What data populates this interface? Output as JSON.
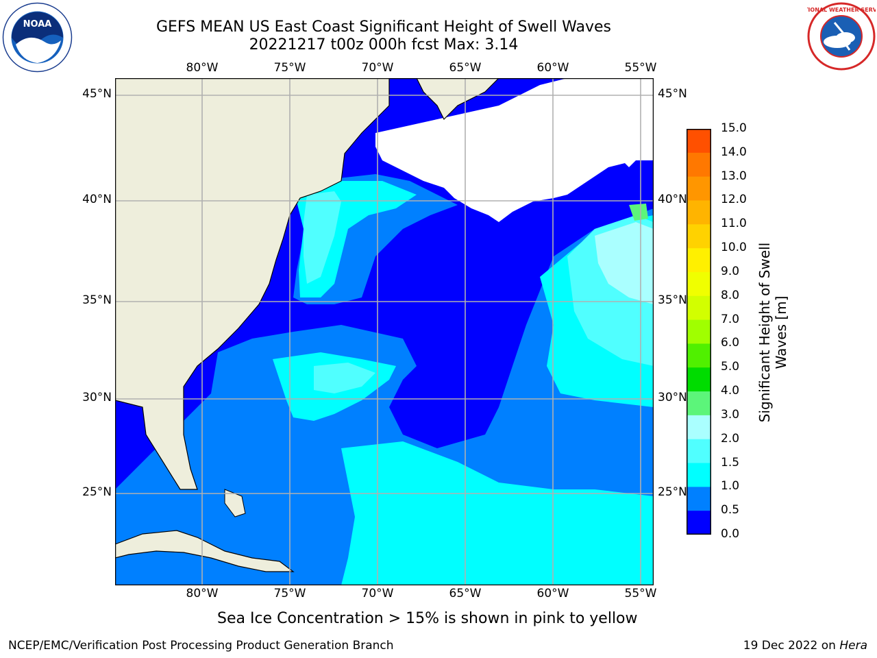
{
  "title": {
    "line1": "GEFS MEAN US East Coast Significant Height of Swell Waves",
    "line2": "20221217 t00z 000h fcst   Max: 3.14"
  },
  "logos": {
    "left": "noaa-logo",
    "right": "nws-logo",
    "left_text": "NOAA",
    "right_text": "NATIONAL WEATHER SERVICE"
  },
  "map": {
    "lon_labels": [
      "80°W",
      "75°W",
      "70°W",
      "65°W",
      "60°W",
      "55°W"
    ],
    "lat_labels": [
      "45°N",
      "40°N",
      "35°N",
      "30°N",
      "25°N"
    ],
    "colors": {
      "land": "#eeeedc",
      "no_data": "#ffffff",
      "grid": "#b0b0b0",
      "coast": "#000000"
    }
  },
  "colorbar": {
    "title": "Significant Height of Swell Waves [m]",
    "title_line1": "Significant Height of Swell",
    "title_line2": "Waves [m]",
    "labels": [
      "15.0",
      "14.0",
      "13.0",
      "12.0",
      "11.0",
      "10.0",
      "9.0",
      "8.0",
      "7.0",
      "6.0",
      "5.0",
      "4.0",
      "3.0",
      "2.0",
      "1.5",
      "1.0",
      "0.5",
      "0.0"
    ],
    "colors": [
      "#ff0000",
      "#ff2800",
      "#ff5000",
      "#ff7800",
      "#ff9600",
      "#ffb400",
      "#ffd200",
      "#fff000",
      "#f0ff00",
      "#d2ff00",
      "#a0ff00",
      "#50f000",
      "#00dc00",
      "#5cf57a",
      "#aaffff",
      "#50ffff",
      "#00ffff",
      "#0080ff",
      "#0000ff"
    ]
  },
  "subcaption": "Sea Ice Concentration > 15% is shown in pink to yellow",
  "footer": {
    "left": "NCEP/EMC/Verification Post Processing Product Generation Branch",
    "right_date": "19 Dec 2022 on ",
    "right_machine": "Hera"
  }
}
